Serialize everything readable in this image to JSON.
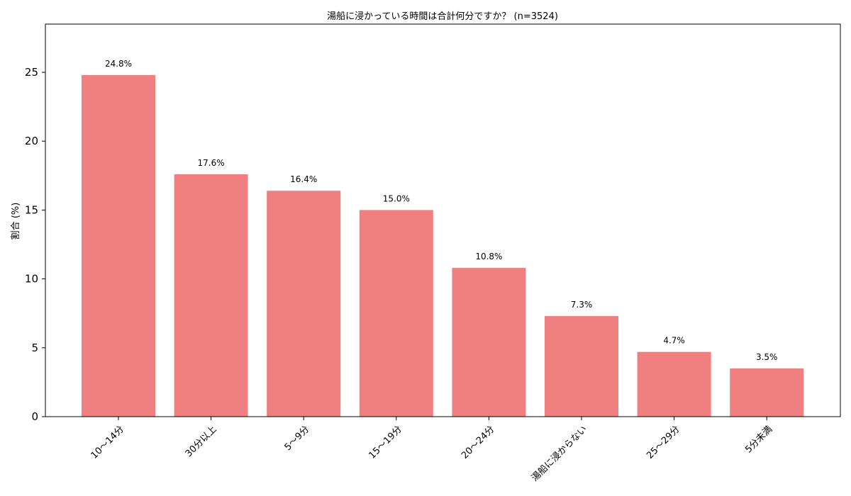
{
  "chart_data": {
    "type": "bar",
    "title": "湯船に浸かっている時間は合計何分ですか？ (n=3524)",
    "ylabel": "割合 (%)",
    "xlabel": "",
    "categories": [
      "10〜14分",
      "30分以上",
      "5〜9分",
      "15〜19分",
      "20〜24分",
      "湯船に浸からない",
      "25〜29分",
      "5分未満"
    ],
    "values": [
      24.8,
      17.6,
      16.4,
      15.0,
      10.8,
      7.3,
      4.7,
      3.5
    ],
    "data_labels": [
      "24.8%",
      "17.6%",
      "16.4%",
      "15.0%",
      "10.8%",
      "7.3%",
      "4.7%",
      "3.5%"
    ],
    "ylim": [
      0,
      28.5
    ],
    "yticks": [
      0,
      5,
      10,
      15,
      20,
      25
    ],
    "grid": false,
    "bar_color": "#f08080"
  }
}
